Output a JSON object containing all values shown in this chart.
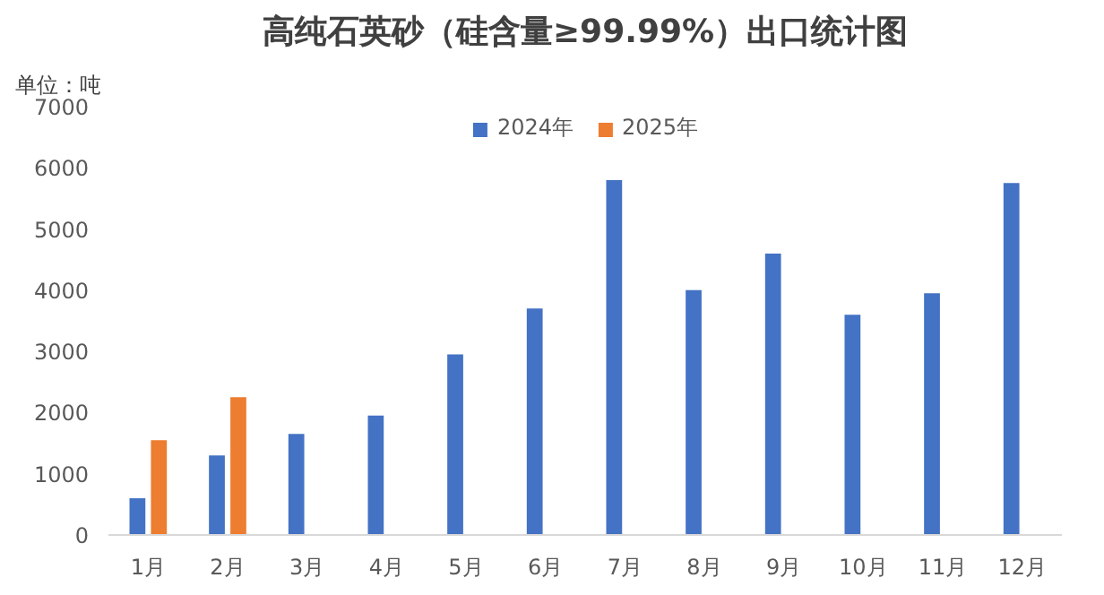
{
  "chart_data": {
    "type": "bar",
    "title": "高纯石英砂（硅含量≥99.99%）出口统计图",
    "annotations": [
      "单位：吨"
    ],
    "categories": [
      "1月",
      "2月",
      "3月",
      "4月",
      "5月",
      "6月",
      "7月",
      "8月",
      "9月",
      "10月",
      "11月",
      "12月"
    ],
    "series": [
      {
        "name": "2024年",
        "color": "#4472c4",
        "values": [
          600,
          1300,
          1650,
          1950,
          2950,
          3700,
          5800,
          4000,
          4600,
          3600,
          3950,
          5750
        ]
      },
      {
        "name": "2025年",
        "color": "#ed7d31",
        "values": [
          1550,
          2250,
          null,
          null,
          null,
          null,
          null,
          null,
          null,
          null,
          null,
          null
        ]
      }
    ],
    "ylim": [
      0,
      7000
    ],
    "yticks": [
      0,
      1000,
      2000,
      3000,
      4000,
      5000,
      6000,
      7000
    ],
    "grid": false,
    "legend": "top"
  }
}
